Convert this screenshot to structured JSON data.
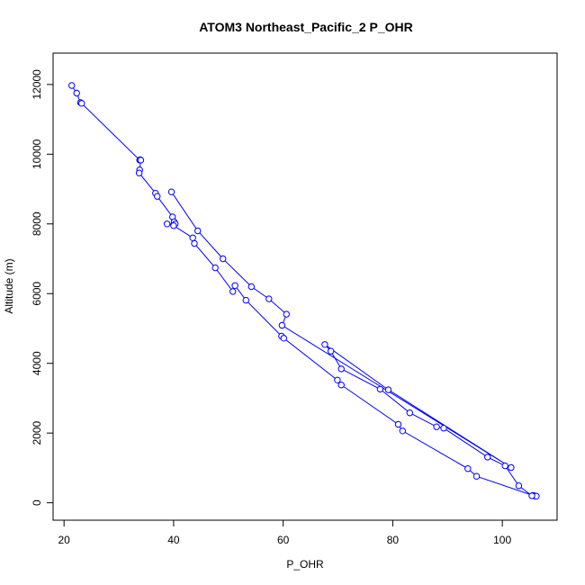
{
  "chart_data": {
    "type": "line",
    "title": "ATOM3 Northeast_Pacific_2 P_OHR",
    "xlabel": "P_OHR",
    "ylabel": "Altitude (m)",
    "xlim": [
      18,
      110
    ],
    "ylim": [
      -500,
      12900
    ],
    "xticks": [
      20,
      40,
      60,
      80,
      100
    ],
    "yticks": [
      0,
      2000,
      4000,
      6000,
      8000,
      10000,
      12000
    ],
    "grid": false,
    "legend": "none",
    "markers": "open-circle",
    "color": "#0000ff",
    "series": [
      {
        "x": [
          21.4,
          22.3,
          23.0,
          23.2,
          33.8,
          33.9,
          34.0,
          33.8,
          33.7,
          36.7,
          37.0,
          39.8,
          40.1,
          40.3,
          38.8,
          40.0,
          43.5,
          43.8,
          47.6,
          50.8,
          51.2,
          53.2,
          59.7,
          60.1,
          69.9,
          70.6,
          81.0,
          81.8,
          93.7,
          95.3,
          105.6,
          106.0,
          106.2,
          105.4,
          103.0,
          100.5,
          97.3,
          89.3,
          88.0,
          83.1,
          77.7,
          70.6,
          68.7,
          67.6,
          79.2,
          101.6,
          59.8,
          60.6,
          57.4,
          54.2,
          49.0,
          44.4,
          39.6
        ],
        "y": [
          11970,
          11750,
          11480,
          11460,
          9830,
          9840,
          9830,
          9550,
          9460,
          8880,
          8790,
          8200,
          8060,
          8000,
          8000,
          7950,
          7600,
          7440,
          6740,
          6060,
          6230,
          5810,
          4780,
          4720,
          3520,
          3380,
          2250,
          2060,
          980,
          760,
          210,
          195,
          190,
          200,
          490,
          1060,
          1310,
          2140,
          2180,
          2580,
          3260,
          3840,
          4350,
          4540,
          3240,
          1010,
          5090,
          5410,
          5850,
          6200,
          7000,
          7800,
          8920
        ]
      }
    ]
  }
}
